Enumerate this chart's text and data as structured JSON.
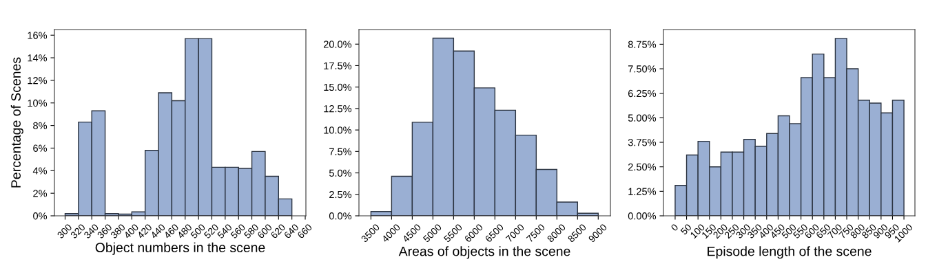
{
  "chart_data": [
    {
      "type": "histogram",
      "xlabel": "Object numbers in the scene",
      "ylabel": "Percentage of Scenes",
      "color": "#9aafd3",
      "bins": [
        300,
        320,
        340,
        360,
        380,
        400,
        420,
        440,
        460,
        480,
        500,
        520,
        540,
        560,
        580,
        600,
        620,
        640
      ],
      "values": [
        0.2,
        8.3,
        9.3,
        0.2,
        0.15,
        0.35,
        5.8,
        10.9,
        10.2,
        15.7,
        15.7,
        4.3,
        4.3,
        4.2,
        5.7,
        3.5,
        1.5
      ],
      "xlim": [
        284,
        661
      ],
      "ylim": [
        0,
        16.5
      ],
      "xticks": [
        300,
        320,
        340,
        360,
        380,
        400,
        420,
        440,
        460,
        480,
        500,
        520,
        540,
        560,
        580,
        600,
        620,
        640,
        660
      ],
      "yticks": [
        {
          "value": 0,
          "label": "0%"
        },
        {
          "value": 2,
          "label": "2%"
        },
        {
          "value": 4,
          "label": "4%"
        },
        {
          "value": 6,
          "label": "6%"
        },
        {
          "value": 8,
          "label": "8%"
        },
        {
          "value": 10,
          "label": "10%"
        },
        {
          "value": 12,
          "label": "12%"
        },
        {
          "value": 14,
          "label": "14%"
        },
        {
          "value": 16,
          "label": "16%"
        }
      ]
    },
    {
      "type": "histogram",
      "xlabel": "Areas of objects in the scene",
      "color": "#9aafd3",
      "bins": [
        3500,
        4000,
        4500,
        5000,
        5500,
        6000,
        6500,
        7000,
        7500,
        8000,
        8500,
        9000
      ],
      "values": [
        0.5,
        4.6,
        10.9,
        20.7,
        19.2,
        14.9,
        12.3,
        9.4,
        5.4,
        1.6,
        0.3
      ],
      "xlim": [
        3210,
        9295
      ],
      "ylim": [
        0,
        21.7
      ],
      "xticks": [
        3500,
        4000,
        4500,
        5000,
        5500,
        6000,
        6500,
        7000,
        7500,
        8000,
        8500,
        9000
      ],
      "yticks": [
        {
          "value": 0,
          "label": "0.0%"
        },
        {
          "value": 2.5,
          "label": "2.5%"
        },
        {
          "value": 5,
          "label": "5.0%"
        },
        {
          "value": 7.5,
          "label": "7.5%"
        },
        {
          "value": 10,
          "label": "10.0%"
        },
        {
          "value": 12.5,
          "label": "12.5%"
        },
        {
          "value": 15,
          "label": "15.0%"
        },
        {
          "value": 17.5,
          "label": "17.5%"
        },
        {
          "value": 20,
          "label": "20.0%"
        }
      ]
    },
    {
      "type": "histogram",
      "xlabel": "Episode length of the scene",
      "color": "#9aafd3",
      "bins": [
        0,
        50,
        100,
        150,
        200,
        250,
        300,
        350,
        400,
        450,
        500,
        550,
        600,
        650,
        700,
        750,
        800,
        850,
        900,
        950,
        1000
      ],
      "values": [
        1.55,
        3.1,
        3.8,
        2.5,
        3.25,
        3.25,
        3.9,
        3.55,
        4.2,
        5.1,
        4.7,
        7.05,
        8.25,
        7.05,
        9.05,
        7.5,
        5.9,
        5.75,
        5.25,
        5.9
      ],
      "xlim": [
        -51,
        1048
      ],
      "ylim": [
        0,
        9.5
      ],
      "xticks": [
        0,
        50,
        100,
        150,
        200,
        250,
        300,
        350,
        400,
        450,
        500,
        550,
        600,
        650,
        700,
        750,
        800,
        850,
        900,
        950,
        1000
      ],
      "yticks": [
        {
          "value": 0,
          "label": "0.00%"
        },
        {
          "value": 1.25,
          "label": "1.25%"
        },
        {
          "value": 2.5,
          "label": "2.50%"
        },
        {
          "value": 3.75,
          "label": "3.75%"
        },
        {
          "value": 5,
          "label": "5.00%"
        },
        {
          "value": 6.25,
          "label": "6.25%"
        },
        {
          "value": 7.5,
          "label": "7.50%"
        },
        {
          "value": 8.75,
          "label": "8.75%"
        }
      ]
    }
  ]
}
